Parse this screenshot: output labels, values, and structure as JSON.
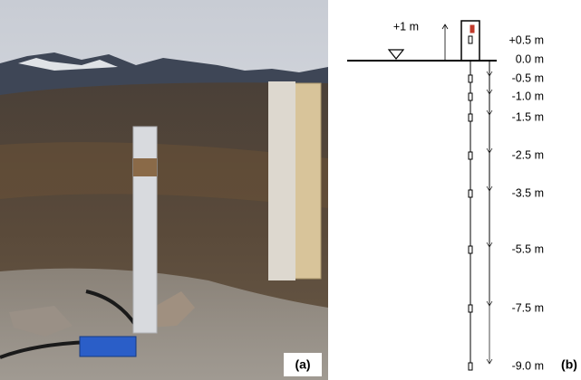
{
  "panel_a": {
    "label": "(a)"
  },
  "panel_b": {
    "label": "(b)",
    "height_label": "+1 m",
    "depth_labels": [
      "+0.5 m",
      "0.0 m",
      "-0.5 m",
      "-1.0 m",
      "-1.5 m",
      "-2.5 m",
      "-3.5 m",
      "-5.5 m",
      "-7.5 m",
      "-9.0 m"
    ]
  }
}
